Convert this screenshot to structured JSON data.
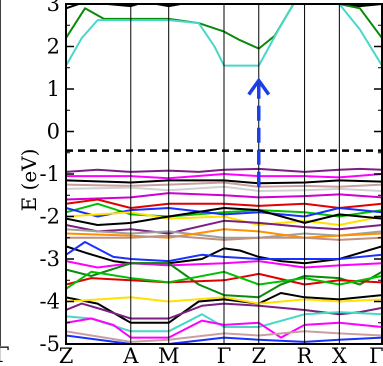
{
  "chart_data": {
    "type": "line",
    "title": "",
    "xlabel": "",
    "ylabel": "E (eV)",
    "ylim": [
      -5,
      3
    ],
    "yticks": [
      "-5",
      "-4",
      "-3",
      "-2",
      "-1",
      "0",
      "1",
      "2",
      "3"
    ],
    "k_points": [
      {
        "label": "Z",
        "x": 0.0
      },
      {
        "label": "A",
        "x": 0.205
      },
      {
        "label": "M",
        "x": 0.325
      },
      {
        "label": "Γ",
        "x": 0.5
      },
      {
        "label": "Z",
        "x": 0.61
      },
      {
        "label": "R",
        "x": 0.755
      },
      {
        "label": "X",
        "x": 0.865
      },
      {
        "label": "Γ",
        "x": 1.0
      }
    ],
    "fermi_level": -0.45,
    "transition_arrow": {
      "x": 0.61,
      "from": -1.3,
      "to": 1.2,
      "color": "#1a3ee8"
    },
    "left_panel_tick": "Γ",
    "series": [
      {
        "color": "#000000",
        "x": [
          0,
          0.06,
          0.205,
          0.25,
          0.325,
          0.4,
          0.5,
          0.61,
          0.755,
          0.865,
          0.93,
          1.0
        ],
        "y": [
          2.9,
          3.05,
          2.95,
          3.05,
          2.95,
          3.05,
          3.0,
          3.05,
          3.0,
          3.0,
          2.95,
          3.0
        ]
      },
      {
        "color": "#0a8a0a",
        "x": [
          0,
          0.06,
          0.12,
          0.205,
          0.325,
          0.42,
          0.5,
          0.55,
          0.61,
          0.66,
          0.72,
          0.755,
          0.865,
          0.93,
          1.0
        ],
        "y": [
          2.2,
          2.9,
          2.65,
          2.65,
          2.65,
          2.55,
          2.35,
          2.15,
          1.95,
          2.25,
          3.0,
          3.0,
          3.0,
          2.9,
          2.2
        ]
      },
      {
        "color": "#48d8c8",
        "x": [
          0,
          0.05,
          0.1,
          0.205,
          0.325,
          0.42,
          0.47,
          0.5,
          0.61,
          0.68,
          0.72,
          0.755,
          0.865,
          0.93,
          1.0
        ],
        "y": [
          1.55,
          2.2,
          2.62,
          2.62,
          2.62,
          2.55,
          2.0,
          1.55,
          1.55,
          2.5,
          3.0,
          3.0,
          3.0,
          2.4,
          1.55
        ]
      },
      {
        "color": "#7b2080",
        "x": [
          0,
          0.1,
          0.205,
          0.325,
          0.42,
          0.5,
          0.61,
          0.755,
          0.865,
          0.93,
          1.0
        ],
        "y": [
          -0.95,
          -0.9,
          -0.95,
          -0.92,
          -0.95,
          -0.9,
          -0.88,
          -0.95,
          -0.9,
          -0.88,
          -0.9
        ]
      },
      {
        "color": "#ff00ff",
        "x": [
          0,
          0.205,
          0.325,
          0.5,
          0.61,
          0.755,
          0.865,
          1.0
        ],
        "y": [
          -1.05,
          -1.05,
          -1.1,
          -1.0,
          -1.05,
          -1.05,
          -1.08,
          -1.0
        ]
      },
      {
        "color": "#000000",
        "x": [
          0,
          0.205,
          0.325,
          0.5,
          0.61,
          0.755,
          0.865,
          1.0
        ],
        "y": [
          -1.15,
          -1.2,
          -1.15,
          -1.15,
          -1.22,
          -1.2,
          -1.15,
          -1.18
        ]
      },
      {
        "color": "#c8a0a0",
        "x": [
          0,
          0.205,
          0.325,
          0.5,
          0.61,
          0.755,
          0.865,
          1.0
        ],
        "y": [
          -1.25,
          -1.28,
          -1.25,
          -1.2,
          -1.3,
          -1.28,
          -1.3,
          -1.25
        ]
      },
      {
        "color": "#d0d0d0",
        "x": [
          0,
          0.205,
          0.325,
          0.5,
          0.61,
          0.755,
          0.865,
          1.0
        ],
        "y": [
          -1.35,
          -1.32,
          -1.38,
          -1.3,
          -1.4,
          -1.38,
          -1.35,
          -1.4
        ]
      },
      {
        "color": "#d000d0",
        "x": [
          0,
          0.205,
          0.325,
          0.5,
          0.61,
          0.755,
          0.865,
          1.0
        ],
        "y": [
          -1.6,
          -1.55,
          -1.45,
          -1.5,
          -1.55,
          -1.52,
          -1.48,
          -1.55
        ]
      },
      {
        "color": "#e00000",
        "x": [
          0,
          0.1,
          0.205,
          0.325,
          0.5,
          0.61,
          0.755,
          0.865,
          1.0
        ],
        "y": [
          -1.7,
          -1.6,
          -1.8,
          -1.7,
          -1.7,
          -1.75,
          -1.7,
          -1.8,
          -1.7
        ]
      },
      {
        "color": "#00c000",
        "x": [
          0,
          0.1,
          0.205,
          0.325,
          0.5,
          0.61,
          0.755,
          0.865,
          1.0
        ],
        "y": [
          -1.9,
          -1.7,
          -1.95,
          -2.0,
          -1.9,
          -1.85,
          -1.9,
          -2.0,
          -1.85
        ]
      },
      {
        "color": "#1a30ff",
        "x": [
          0,
          0.1,
          0.205,
          0.325,
          0.5,
          0.61,
          0.755,
          0.865,
          1.0
        ],
        "y": [
          -1.8,
          -2.0,
          -1.85,
          -1.8,
          -1.95,
          -1.9,
          -2.0,
          -1.8,
          -1.9
        ]
      },
      {
        "color": "#ffe000",
        "x": [
          0,
          0.205,
          0.325,
          0.5,
          0.61,
          0.755,
          0.865,
          1.0
        ],
        "y": [
          -2.0,
          -1.9,
          -2.05,
          -2.0,
          -2.2,
          -2.1,
          -2.2,
          -2.0
        ]
      },
      {
        "color": "#000000",
        "x": [
          0,
          0.1,
          0.205,
          0.325,
          0.5,
          0.61,
          0.755,
          0.865,
          1.0
        ],
        "y": [
          -2.05,
          -2.2,
          -2.15,
          -2.0,
          -1.8,
          -1.85,
          -2.15,
          -1.95,
          -2.05
        ]
      },
      {
        "color": "#7b2080",
        "x": [
          0,
          0.1,
          0.205,
          0.325,
          0.5,
          0.61,
          0.755,
          0.865,
          1.0
        ],
        "y": [
          -2.2,
          -2.35,
          -2.3,
          -2.4,
          -2.1,
          -2.15,
          -2.25,
          -2.3,
          -2.2
        ]
      },
      {
        "color": "#a0a0a0",
        "x": [
          0,
          0.205,
          0.325,
          0.5,
          0.61,
          0.755,
          0.865,
          1.0
        ],
        "y": [
          -2.3,
          -2.4,
          -2.35,
          -2.5,
          -2.5,
          -2.4,
          -2.45,
          -2.35
        ]
      },
      {
        "color": "#ff9000",
        "x": [
          0,
          0.205,
          0.325,
          0.5,
          0.61,
          0.755,
          0.865,
          1.0
        ],
        "y": [
          -2.4,
          -2.45,
          -2.5,
          -2.3,
          -2.35,
          -2.5,
          -2.45,
          -2.4
        ]
      },
      {
        "color": "#c09080",
        "x": [
          0,
          0.205,
          0.325,
          0.5,
          0.61,
          0.755,
          0.865,
          1.0
        ],
        "y": [
          -2.5,
          -2.5,
          -2.45,
          -2.55,
          -2.5,
          -2.5,
          -2.55,
          -2.5
        ]
      },
      {
        "color": "#000000",
        "x": [
          0,
          0.06,
          0.15,
          0.205,
          0.325,
          0.43,
          0.5,
          0.55,
          0.61,
          0.68,
          0.755,
          0.865,
          1.0
        ],
        "y": [
          -2.7,
          -2.85,
          -3.05,
          -3.1,
          -3.1,
          -3.0,
          -2.75,
          -2.8,
          -2.95,
          -3.05,
          -3.1,
          -3.0,
          -2.7
        ]
      },
      {
        "color": "#1a30ff",
        "x": [
          0,
          0.06,
          0.15,
          0.205,
          0.325,
          0.43,
          0.5,
          0.61,
          0.755,
          0.865,
          1.0
        ],
        "y": [
          -2.9,
          -2.6,
          -2.95,
          -3.0,
          -3.05,
          -2.9,
          -2.95,
          -3.0,
          -3.0,
          -3.0,
          -2.9
        ]
      },
      {
        "color": "#ff00ff",
        "x": [
          0,
          0.1,
          0.205,
          0.325,
          0.5,
          0.61,
          0.755,
          0.865,
          1.0
        ],
        "y": [
          -3.05,
          -3.2,
          -3.1,
          -3.15,
          -3.1,
          -3.05,
          -3.2,
          -3.15,
          -3.1
        ]
      },
      {
        "color": "#0a8a0a",
        "x": [
          0,
          0.08,
          0.205,
          0.325,
          0.42,
          0.5,
          0.61,
          0.68,
          0.755,
          0.865,
          0.93,
          1.0
        ],
        "y": [
          -3.25,
          -3.4,
          -3.1,
          -3.1,
          -3.6,
          -3.85,
          -3.9,
          -3.6,
          -3.4,
          -3.45,
          -3.6,
          -3.3
        ]
      },
      {
        "color": "#e00000",
        "x": [
          0,
          0.08,
          0.205,
          0.325,
          0.5,
          0.61,
          0.755,
          0.865,
          1.0
        ],
        "y": [
          -3.6,
          -3.45,
          -3.5,
          -3.55,
          -3.5,
          -3.35,
          -3.6,
          -3.5,
          -3.55
        ]
      },
      {
        "color": "#00c000",
        "x": [
          0,
          0.08,
          0.205,
          0.325,
          0.5,
          0.61,
          0.755,
          0.865,
          1.0
        ],
        "y": [
          -3.7,
          -3.3,
          -3.45,
          -3.55,
          -3.3,
          -3.6,
          -3.45,
          -3.6,
          -3.4
        ]
      },
      {
        "color": "#000000",
        "x": [
          0,
          0.1,
          0.205,
          0.325,
          0.42,
          0.5,
          0.61,
          0.68,
          0.755,
          0.865,
          1.0
        ],
        "y": [
          -3.9,
          -4.05,
          -4.5,
          -4.5,
          -4.0,
          -3.95,
          -4.05,
          -3.8,
          -3.9,
          -3.95,
          -3.85
        ]
      },
      {
        "color": "#ffe000",
        "x": [
          0,
          0.205,
          0.325,
          0.5,
          0.61,
          0.755,
          0.865,
          1.0
        ],
        "y": [
          -4.0,
          -3.9,
          -4.0,
          -3.9,
          -4.05,
          -3.95,
          -4.0,
          -3.95
        ]
      },
      {
        "color": "#7b2080",
        "x": [
          0,
          0.05,
          0.12,
          0.205,
          0.325,
          0.43,
          0.5,
          0.61,
          0.755,
          0.865,
          0.93,
          1.0
        ],
        "y": [
          -4.2,
          -4.05,
          -4.2,
          -4.4,
          -4.4,
          -4.1,
          -4.05,
          -4.1,
          -4.2,
          -4.3,
          -4.25,
          -4.15
        ]
      },
      {
        "color": "#48d8c8",
        "x": [
          0,
          0.08,
          0.205,
          0.325,
          0.43,
          0.5,
          0.61,
          0.755,
          0.865,
          1.0
        ],
        "y": [
          -4.35,
          -4.4,
          -4.7,
          -4.7,
          -4.3,
          -4.6,
          -4.6,
          -4.3,
          -4.25,
          -4.3
        ]
      },
      {
        "color": "#ff00ff",
        "x": [
          0,
          0.08,
          0.15,
          0.205,
          0.325,
          0.43,
          0.5,
          0.61,
          0.68,
          0.755,
          0.865,
          1.0
        ],
        "y": [
          -4.5,
          -4.4,
          -4.55,
          -4.85,
          -4.85,
          -4.45,
          -4.55,
          -4.5,
          -4.85,
          -4.55,
          -4.5,
          -4.6
        ]
      },
      {
        "color": "#c8a0a0",
        "x": [
          0,
          0.205,
          0.325,
          0.5,
          0.61,
          0.755,
          0.865,
          1.0
        ],
        "y": [
          -4.7,
          -4.95,
          -4.9,
          -4.75,
          -4.8,
          -4.7,
          -4.75,
          -4.8
        ]
      },
      {
        "color": "#1a30ff",
        "x": [
          0,
          0.205,
          0.325,
          0.5,
          0.61,
          0.755,
          0.865,
          1.0
        ],
        "y": [
          -4.8,
          -5.0,
          -5.0,
          -4.85,
          -4.9,
          -4.95,
          -4.9,
          -4.85
        ]
      }
    ]
  }
}
